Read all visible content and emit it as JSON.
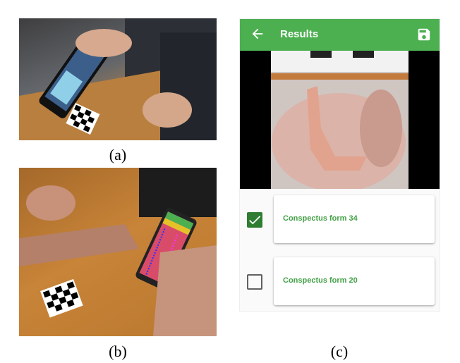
{
  "captions": {
    "a": "(a)",
    "b": "(b)",
    "c": "(c)"
  },
  "app": {
    "title": "Results",
    "accent": "#4caf50",
    "back_icon": "arrow-back-icon",
    "save_icon": "save-icon"
  },
  "results": [
    {
      "label": "Conspectus form 34",
      "checked": true
    },
    {
      "label": "Conspectus form 20",
      "checked": false
    }
  ]
}
